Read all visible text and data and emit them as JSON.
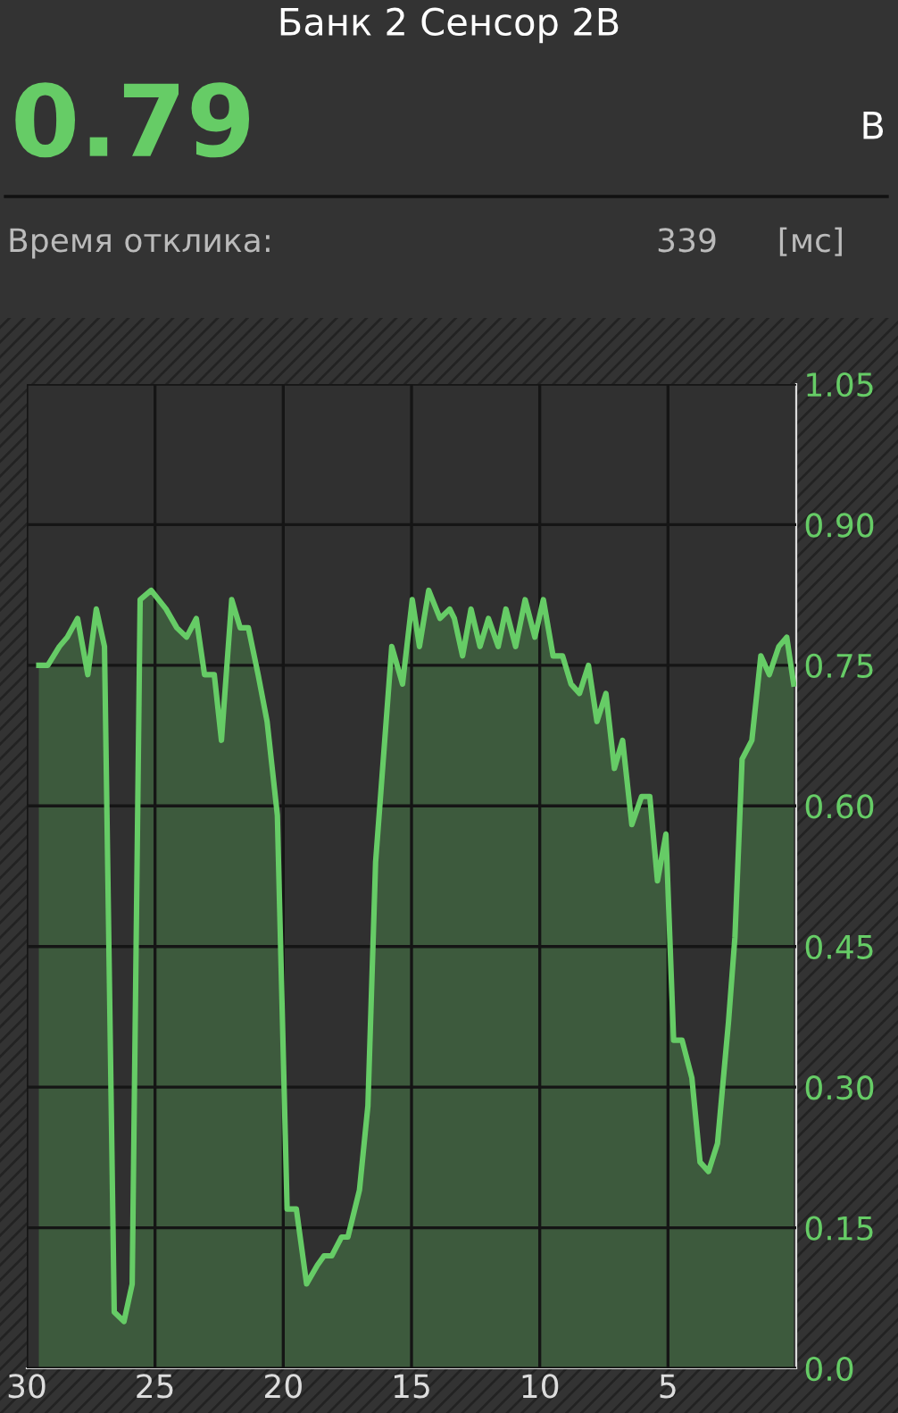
{
  "chart_data": {
    "type": "area",
    "title": "Банк 2 Сенсор 2В",
    "annotations": [
      "0.79",
      "В",
      "Время отклика:",
      "339",
      "[мс]"
    ],
    "x": [
      29.53,
      29.18,
      28.73,
      28.42,
      28.02,
      27.62,
      27.29,
      26.97,
      26.59,
      26.21,
      25.89,
      25.58,
      25.15,
      24.57,
      24.15,
      23.77,
      23.39,
      23.07,
      22.69,
      22.41,
      22.01,
      21.68,
      21.36,
      20.98,
      20.63,
      20.23,
      19.85,
      19.49,
      19.09,
      18.67,
      18.41,
      18.11,
      17.73,
      17.48,
      17.03,
      16.7,
      16.4,
      15.77,
      15.35,
      14.97,
      14.69,
      14.33,
      13.89,
      13.51,
      13.33,
      13.01,
      12.68,
      12.33,
      12.0,
      11.62,
      11.32,
      10.94,
      10.57,
      10.19,
      9.86,
      9.48,
      9.11,
      8.78,
      8.45,
      8.1,
      7.77,
      7.42,
      7.09,
      6.77,
      6.41,
      6.03,
      5.71,
      5.41,
      5.08,
      4.78,
      4.45,
      4.07,
      3.75,
      3.42,
      3.07,
      2.64,
      2.39,
      2.11,
      1.73,
      1.38,
      1.05,
      0.68,
      0.37,
      0.1
    ],
    "series": [
      {
        "color": "#66cc66",
        "values": [
          0.75,
          0.75,
          0.77,
          0.78,
          0.8,
          0.74,
          0.81,
          0.77,
          0.06,
          0.05,
          0.09,
          0.82,
          0.83,
          0.81,
          0.79,
          0.78,
          0.8,
          0.74,
          0.74,
          0.67,
          0.82,
          0.79,
          0.79,
          0.74,
          0.69,
          0.59,
          0.17,
          0.17,
          0.09,
          0.11,
          0.12,
          0.12,
          0.14,
          0.14,
          0.19,
          0.28,
          0.54,
          0.77,
          0.73,
          0.82,
          0.77,
          0.83,
          0.8,
          0.81,
          0.8,
          0.76,
          0.81,
          0.77,
          0.8,
          0.77,
          0.81,
          0.77,
          0.82,
          0.78,
          0.82,
          0.76,
          0.76,
          0.73,
          0.72,
          0.75,
          0.69,
          0.72,
          0.64,
          0.67,
          0.58,
          0.61,
          0.61,
          0.52,
          0.57,
          0.35,
          0.35,
          0.31,
          0.22,
          0.21,
          0.24,
          0.37,
          0.46,
          0.65,
          0.67,
          0.76,
          0.74,
          0.77,
          0.78,
          0.73
        ]
      }
    ],
    "xlim": [
      30,
      0
    ],
    "xticks": [
      30,
      25,
      20,
      15,
      10,
      5
    ],
    "ylim": [
      0,
      1.05
    ],
    "yticks": [
      1.05,
      {
        "value": 0.9,
        "label": "0.90"
      },
      0.75,
      {
        "value": 0.6,
        "label": "0.60"
      },
      0.45,
      {
        "value": 0.3,
        "label": "0.30"
      },
      0.15,
      {
        "value": 0,
        "label": "0.0"
      }
    ],
    "grid": true,
    "legend": false,
    "marker": "none",
    "line_style": "solid"
  }
}
